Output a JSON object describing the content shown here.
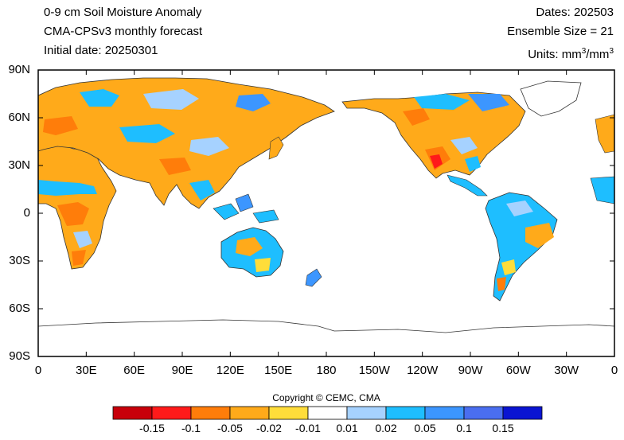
{
  "header": {
    "title": "0-9 cm Soil Moisture Anomaly",
    "model": "CMA-CPSv3 monthly forecast",
    "initial_date": "Initial date: 20250301",
    "dates": "Dates: 202503",
    "ensemble": "Ensemble Size = 21",
    "units_prefix": "Units: mm",
    "units_exp1": "3",
    "units_sep": "/mm",
    "units_exp2": "3"
  },
  "axes": {
    "lat_labels": [
      "90N",
      "60N",
      "30N",
      "0",
      "30S",
      "60S",
      "90S"
    ],
    "lon_labels": [
      "0",
      "30E",
      "60E",
      "90E",
      "120E",
      "150E",
      "180",
      "150W",
      "120W",
      "90W",
      "60W",
      "30W",
      "0"
    ]
  },
  "copyright": "Copyright © CEMC, CMA",
  "colorbar": {
    "colors": [
      "#c8000a",
      "#ff1a1a",
      "#ff7d0a",
      "#ffaa1a",
      "#ffdd3a",
      "#ffffff",
      "#a6d2ff",
      "#1ebeff",
      "#3c96ff",
      "#4a6ef0",
      "#0a14d2"
    ],
    "labels": [
      "-0.15",
      "-0.1",
      "-0.05",
      "-0.02",
      "-0.01",
      "0.01",
      "0.02",
      "0.05",
      "0.1",
      "0.15"
    ]
  }
}
